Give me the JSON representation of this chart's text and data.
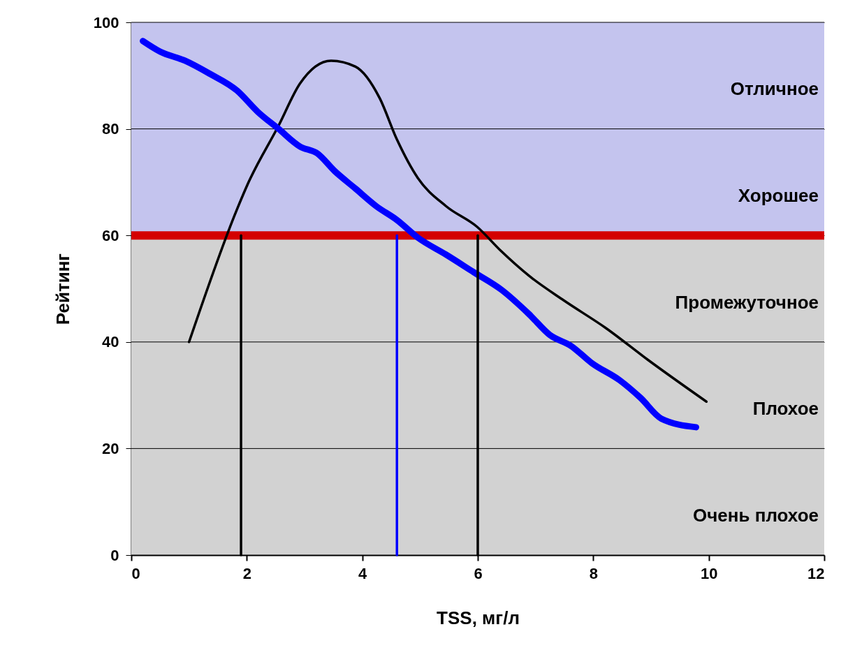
{
  "chart_data": {
    "type": "line",
    "xlabel": "TSS, мг/л",
    "ylabel": "Рейтинг",
    "xlim": [
      0,
      12
    ],
    "xticks": [
      0,
      2,
      4,
      6,
      8,
      10,
      12
    ],
    "ylim": [
      0,
      100
    ],
    "yticks": [
      0,
      20,
      40,
      60,
      80,
      100
    ],
    "grid": "y",
    "line_style": "solid",
    "series": [
      {
        "color": "#000000",
        "x": [
          1.0,
          1.83,
          2.01,
          2.55,
          2.92,
          3.46,
          3.88,
          4.3,
          4.6,
          4.96,
          5.45,
          5.99,
          6.41,
          6.89,
          7.49,
          8.22,
          8.94,
          9.96
        ],
        "values": [
          40,
          64.9,
          69.5,
          80.6,
          88.5,
          92.8,
          91.7,
          85.8,
          78,
          70.8,
          65.5,
          61.6,
          57,
          52.4,
          47.8,
          42.6,
          36.7,
          28.8
        ]
      },
      {
        "color": "#0000ff",
        "x": [
          0.2,
          0.5,
          0.93,
          1.35,
          1.83,
          2.19,
          2.55,
          2.92,
          3.22,
          3.52,
          3.88,
          4.24,
          4.6,
          4.96,
          5.45,
          5.93,
          6.41,
          6.89,
          7.25,
          7.61,
          7.98,
          8.46,
          8.82,
          9.18,
          9.78
        ],
        "values": [
          96.5,
          94.5,
          92.8,
          90.4,
          87.2,
          83.2,
          80,
          76.7,
          75.4,
          72.1,
          68.8,
          65.5,
          62.9,
          59.6,
          56.4,
          53.1,
          49.8,
          45.2,
          41.3,
          39.3,
          36,
          32.8,
          29.5,
          25.6,
          24
        ]
      },
      {
        "color": "#000000",
        "x": [
          1.9,
          1.9
        ],
        "values": [
          60,
          0
        ]
      },
      {
        "color": "#0000ff",
        "x": [
          4.6,
          4.6
        ],
        "values": [
          60,
          0
        ]
      },
      {
        "color": "#000000",
        "x": [
          6.0,
          6.0
        ],
        "values": [
          60,
          0
        ]
      }
    ],
    "bands": [
      {
        "axis": "y",
        "from": 60,
        "to": 100,
        "color": "#c4c4ee"
      },
      {
        "axis": "y",
        "from": 0,
        "to": 60,
        "color": "#d2d2d2"
      }
    ],
    "ref_lines": [
      {
        "axis": "y",
        "value": 60,
        "color": "#d40000"
      }
    ],
    "annotations": [
      "Отличное",
      "Хорошее",
      "Промежуточное",
      "Плохое",
      "Очень плохое"
    ]
  }
}
